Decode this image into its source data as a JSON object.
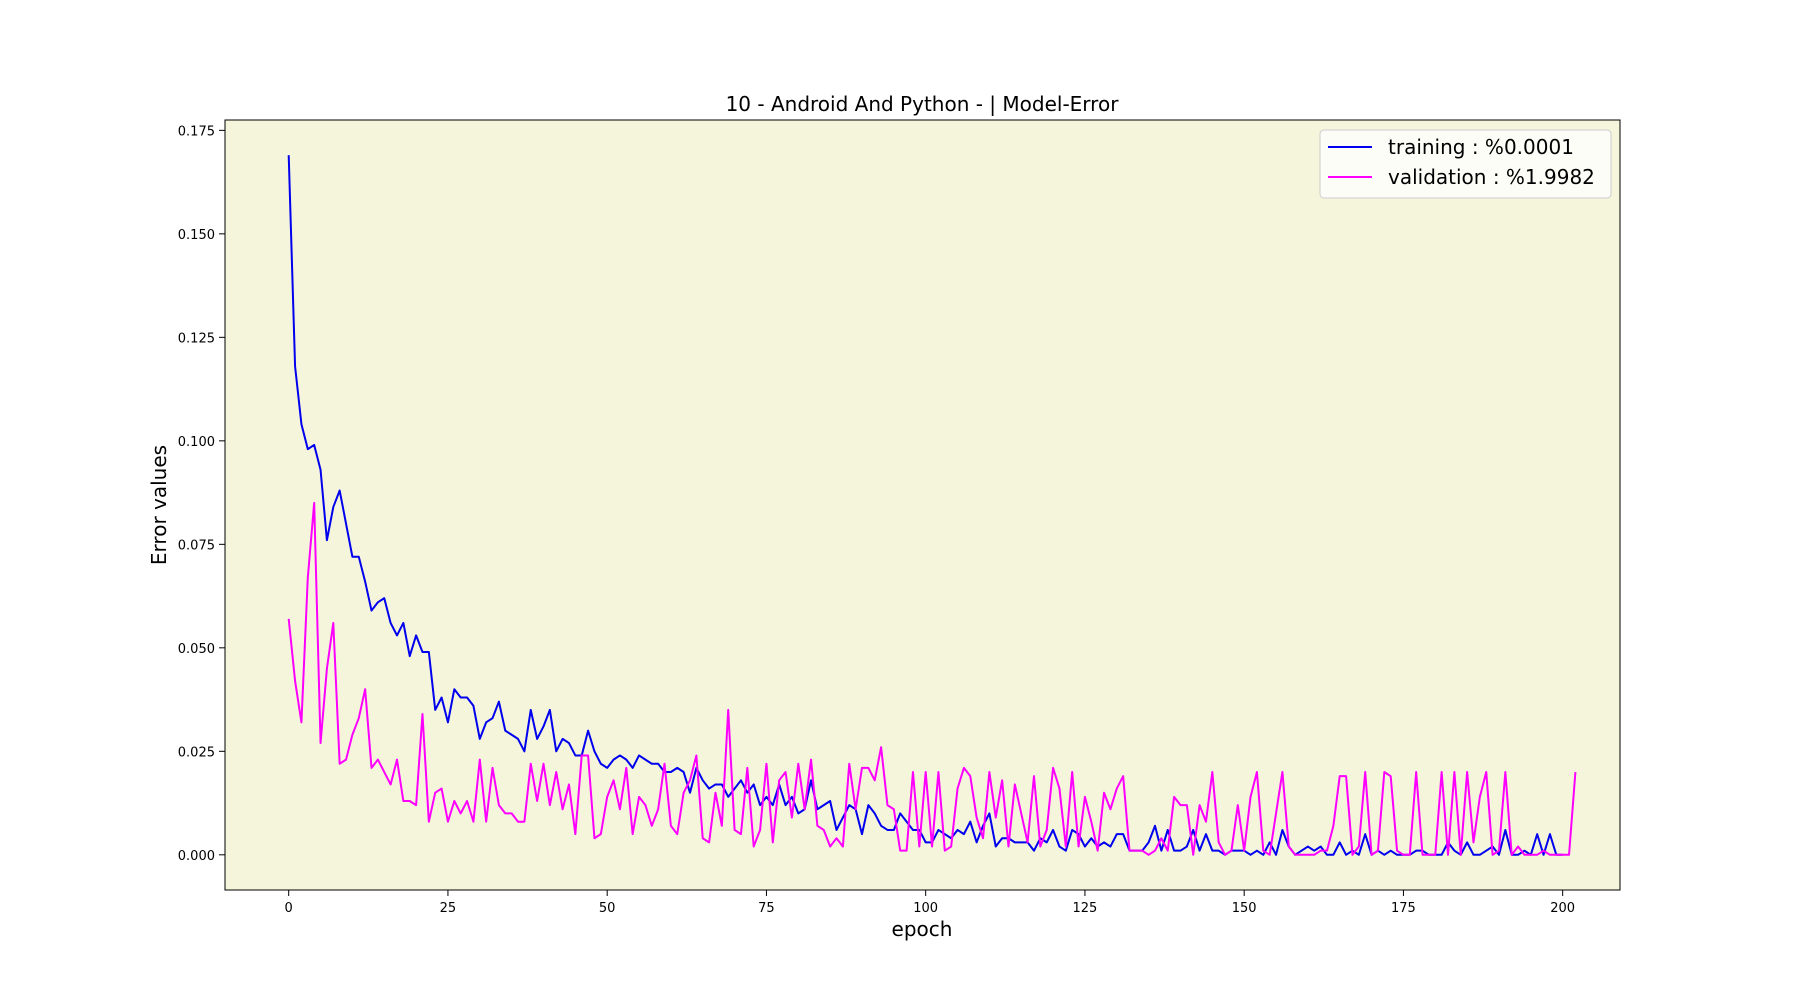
{
  "chart_data": {
    "type": "line",
    "title": "10 - Android And Python - | Model-Error",
    "xlabel": "epoch",
    "ylabel": "Error values",
    "xlim": [
      -10,
      209
    ],
    "ylim": [
      -0.0085,
      0.1775
    ],
    "xticks": [
      0,
      25,
      50,
      75,
      100,
      125,
      150,
      175,
      200
    ],
    "yticks": [
      0.0,
      0.025,
      0.05,
      0.075,
      0.1,
      0.125,
      0.15,
      0.175
    ],
    "ytick_labels": [
      "0.000",
      "0.025",
      "0.050",
      "0.075",
      "0.100",
      "0.125",
      "0.150",
      "0.175"
    ],
    "xtick_labels": [
      "0",
      "25",
      "50",
      "75",
      "100",
      "125",
      "150",
      "175",
      "200"
    ],
    "grid": false,
    "legend_position": "top-right",
    "plot_background": "#f5f5dc",
    "series": [
      {
        "name": "training  : %0.0001",
        "color": "#0000ee",
        "y": [
          0.169,
          0.118,
          0.104,
          0.098,
          0.099,
          0.093,
          0.076,
          0.084,
          0.088,
          0.08,
          0.072,
          0.072,
          0.066,
          0.059,
          0.061,
          0.062,
          0.056,
          0.053,
          0.056,
          0.048,
          0.053,
          0.049,
          0.049,
          0.035,
          0.038,
          0.032,
          0.04,
          0.038,
          0.038,
          0.036,
          0.028,
          0.032,
          0.033,
          0.037,
          0.03,
          0.029,
          0.028,
          0.025,
          0.035,
          0.028,
          0.031,
          0.035,
          0.025,
          0.028,
          0.027,
          0.024,
          0.024,
          0.03,
          0.025,
          0.022,
          0.021,
          0.023,
          0.024,
          0.023,
          0.021,
          0.024,
          0.023,
          0.022,
          0.022,
          0.02,
          0.02,
          0.021,
          0.02,
          0.015,
          0.021,
          0.018,
          0.016,
          0.017,
          0.017,
          0.014,
          0.016,
          0.018,
          0.015,
          0.017,
          0.012,
          0.014,
          0.012,
          0.017,
          0.012,
          0.014,
          0.01,
          0.011,
          0.018,
          0.011,
          0.012,
          0.013,
          0.006,
          0.009,
          0.012,
          0.011,
          0.005,
          0.012,
          0.01,
          0.007,
          0.006,
          0.006,
          0.01,
          0.008,
          0.006,
          0.006,
          0.003,
          0.003,
          0.006,
          0.005,
          0.004,
          0.006,
          0.005,
          0.008,
          0.003,
          0.007,
          0.01,
          0.002,
          0.004,
          0.004,
          0.003,
          0.003,
          0.003,
          0.001,
          0.004,
          0.003,
          0.006,
          0.002,
          0.001,
          0.006,
          0.005,
          0.002,
          0.004,
          0.002,
          0.003,
          0.002,
          0.005,
          0.005,
          0.001,
          0.001,
          0.001,
          0.003,
          0.007,
          0.001,
          0.006,
          0.001,
          0.001,
          0.002,
          0.006,
          0.001,
          0.005,
          0.001,
          0.001,
          0.0,
          0.001,
          0.001,
          0.001,
          0.0,
          0.001,
          0.0,
          0.003,
          0.0,
          0.006,
          0.002,
          0.0,
          0.001,
          0.002,
          0.001,
          0.002,
          0.0,
          0.0,
          0.003,
          0.0,
          0.001,
          0.0,
          0.005,
          0.0,
          0.001,
          0.0,
          0.001,
          0.0,
          0.0,
          0.0,
          0.001,
          0.001,
          0.0,
          0.0,
          0.0,
          0.003,
          0.001,
          0.0,
          0.003,
          0.0,
          0.0,
          0.001,
          0.002,
          0.0,
          0.006,
          0.0,
          0.0,
          0.001,
          0.0,
          0.005,
          0.0,
          0.005,
          0.0,
          0.0
        ]
      },
      {
        "name": "validation : %1.9982",
        "color": "#ff00ff",
        "y": [
          0.057,
          0.042,
          0.032,
          0.067,
          0.085,
          0.027,
          0.045,
          0.056,
          0.022,
          0.023,
          0.029,
          0.033,
          0.04,
          0.021,
          0.023,
          0.02,
          0.017,
          0.023,
          0.013,
          0.013,
          0.012,
          0.034,
          0.008,
          0.015,
          0.016,
          0.008,
          0.013,
          0.01,
          0.013,
          0.008,
          0.023,
          0.008,
          0.021,
          0.012,
          0.01,
          0.01,
          0.008,
          0.008,
          0.022,
          0.013,
          0.022,
          0.012,
          0.02,
          0.011,
          0.017,
          0.005,
          0.024,
          0.024,
          0.004,
          0.005,
          0.014,
          0.018,
          0.011,
          0.021,
          0.005,
          0.014,
          0.012,
          0.007,
          0.011,
          0.022,
          0.007,
          0.005,
          0.015,
          0.018,
          0.024,
          0.004,
          0.003,
          0.015,
          0.007,
          0.035,
          0.006,
          0.005,
          0.021,
          0.002,
          0.006,
          0.022,
          0.003,
          0.018,
          0.02,
          0.009,
          0.022,
          0.011,
          0.023,
          0.007,
          0.006,
          0.002,
          0.004,
          0.002,
          0.022,
          0.011,
          0.021,
          0.021,
          0.018,
          0.026,
          0.012,
          0.011,
          0.001,
          0.001,
          0.02,
          0.002,
          0.02,
          0.002,
          0.02,
          0.001,
          0.002,
          0.016,
          0.021,
          0.019,
          0.009,
          0.004,
          0.02,
          0.009,
          0.018,
          0.002,
          0.017,
          0.01,
          0.003,
          0.019,
          0.002,
          0.006,
          0.021,
          0.016,
          0.002,
          0.02,
          0.002,
          0.014,
          0.008,
          0.001,
          0.015,
          0.011,
          0.016,
          0.019,
          0.001,
          0.001,
          0.001,
          0.0,
          0.001,
          0.004,
          0.001,
          0.014,
          0.012,
          0.012,
          0.0,
          0.012,
          0.008,
          0.02,
          0.003,
          0.0,
          0.001,
          0.012,
          0.001,
          0.014,
          0.02,
          0.001,
          0.0,
          0.01,
          0.02,
          0.002,
          0.0,
          0.0,
          0.0,
          0.0,
          0.001,
          0.001,
          0.007,
          0.019,
          0.019,
          0.0,
          0.002,
          0.02,
          0.0,
          0.001,
          0.02,
          0.019,
          0.001,
          0.0,
          0.0,
          0.02,
          0.0,
          0.0,
          0.0,
          0.02,
          0.0,
          0.02,
          0.0,
          0.02,
          0.003,
          0.014,
          0.02,
          0.0,
          0.001,
          0.02,
          0.0,
          0.002,
          0.0,
          0.0,
          0.0,
          0.001,
          0.0,
          0.0,
          0.0,
          0.0,
          0.02
        ]
      }
    ]
  }
}
